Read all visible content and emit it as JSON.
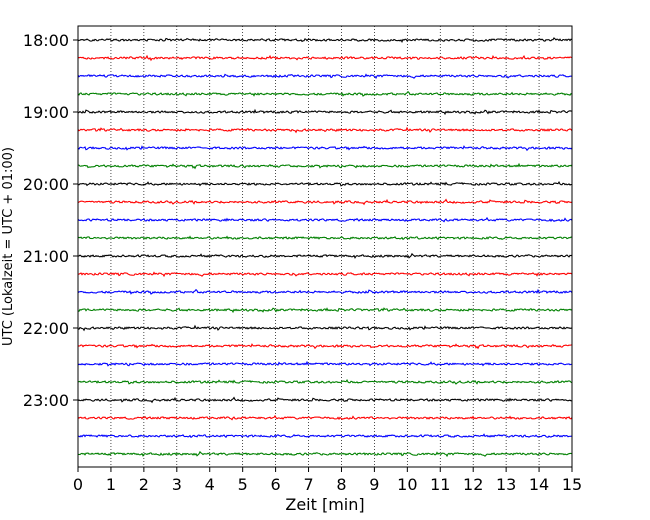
{
  "chart_data": {
    "type": "line",
    "subtype": "helicorder",
    "xlabel": "Zeit  [min]",
    "ylabel": "UTC (Lokalzeit = UTC + 01:00)",
    "xlim": [
      0,
      15
    ],
    "x_ticks": [
      0,
      1,
      2,
      3,
      4,
      5,
      6,
      7,
      8,
      9,
      10,
      11,
      12,
      13,
      14,
      15
    ],
    "x_tick_labels": [
      "0",
      "1",
      "2",
      "3",
      "4",
      "5",
      "6",
      "7",
      "8",
      "9",
      "10",
      "11",
      "12",
      "13",
      "14",
      "15"
    ],
    "vertical_grid": "dotted",
    "y_tick_labels": [
      "18:00",
      "19:00",
      "20:00",
      "21:00",
      "22:00",
      "23:00"
    ],
    "line_start": "18:00",
    "minutes_per_line": 15,
    "line_count": 24,
    "line_colors": [
      "#000000",
      "#ff0000",
      "#0000ff",
      "#008000"
    ],
    "colors": {
      "black": "#000000",
      "red": "#ff0000",
      "blue": "#0000ff",
      "green": "#008000"
    }
  }
}
